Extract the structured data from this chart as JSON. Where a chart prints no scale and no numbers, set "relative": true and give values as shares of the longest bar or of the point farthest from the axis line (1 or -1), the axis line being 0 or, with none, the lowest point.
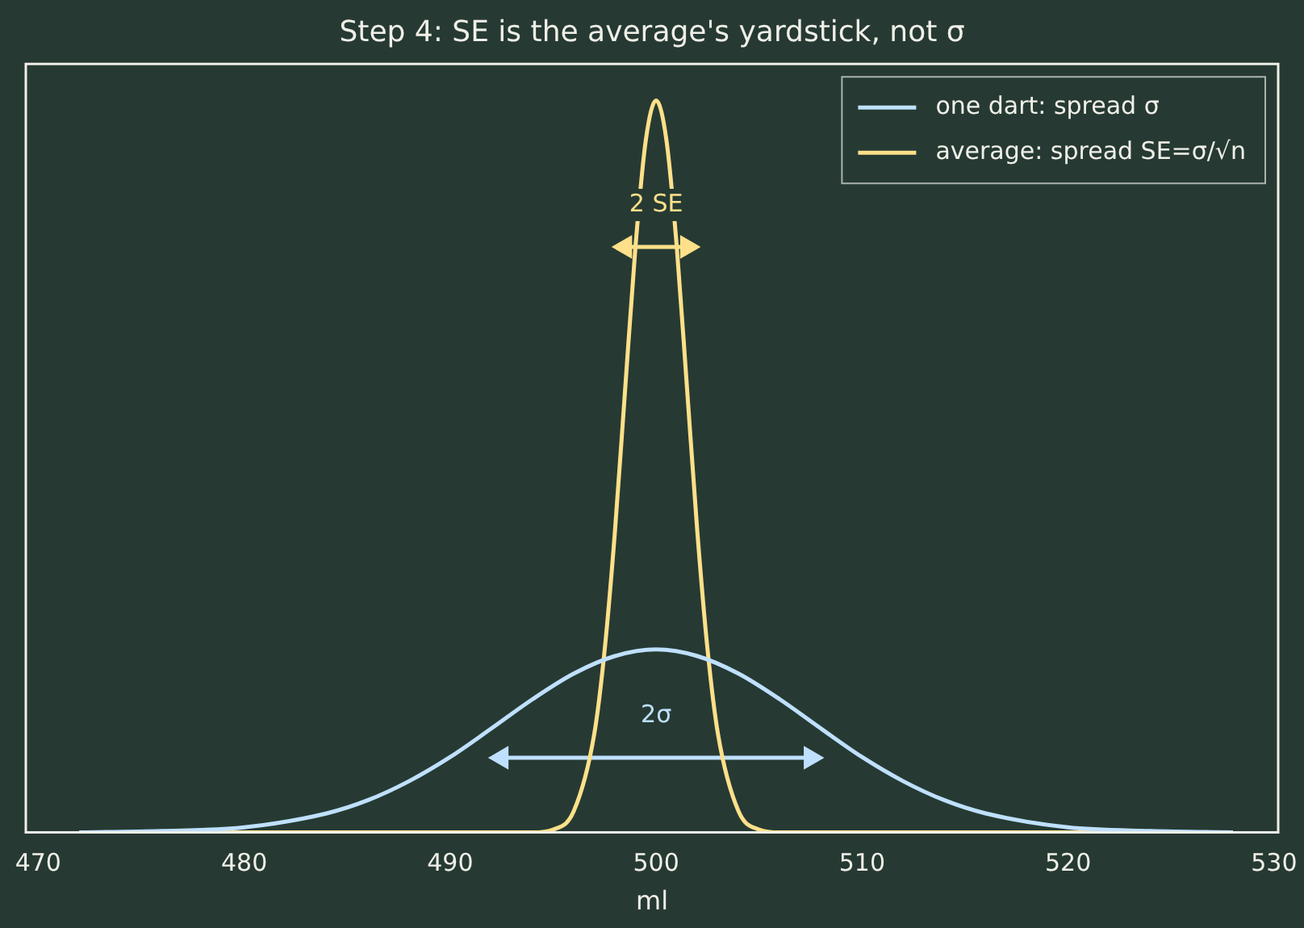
{
  "chart_data": {
    "type": "line",
    "title": "Step 4: SE is the average's yardstick, not σ",
    "xlabel": "ml",
    "relative": true,
    "xlim": [
      469.4,
      530.2
    ],
    "xticks": [
      470,
      480,
      490,
      500,
      510,
      520,
      530
    ],
    "tick_labels": "x",
    "grid": false,
    "legend": "top right",
    "marker": "none",
    "series": [
      {
        "name": "one dart: spread σ",
        "color": "#bfe0ff",
        "x": [
          472,
          476,
          480,
          484,
          486,
          488,
          490,
          492,
          494,
          496,
          498,
          500,
          502,
          504,
          506,
          508,
          510,
          512,
          514,
          516,
          520,
          524,
          528
        ],
        "values": [
          0,
          0.002,
          0.007,
          0.026,
          0.044,
          0.07,
          0.103,
          0.142,
          0.182,
          0.217,
          0.241,
          0.25,
          0.241,
          0.217,
          0.182,
          0.142,
          0.103,
          0.07,
          0.044,
          0.026,
          0.007,
          0.002,
          0
        ]
      },
      {
        "name": "average: spread SE=σ/√n",
        "color": "#ffe08a",
        "x": [
          472,
          490,
          494,
          495,
          496,
          497,
          497.5,
          498,
          498.5,
          499,
          499.5,
          500,
          500.5,
          501,
          501.5,
          502,
          502.5,
          503,
          504,
          505,
          506,
          510,
          528
        ],
        "values": [
          0,
          0,
          0,
          0.004,
          0.029,
          0.135,
          0.249,
          0.411,
          0.607,
          0.801,
          0.946,
          1,
          0.946,
          0.801,
          0.607,
          0.411,
          0.249,
          0.135,
          0.029,
          0.004,
          0,
          0,
          0
        ]
      },
      {
        "color": "#bfe0ff",
        "x": [
          492.5,
          507.5
        ],
        "values": [
          0.102,
          0.102
        ],
        "marker": "triangle"
      },
      {
        "color": "#ffe08a",
        "x": [
          498.5,
          501.5
        ],
        "values": [
          0.8,
          0.8
        ],
        "marker": "triangle"
      }
    ],
    "annotations": [
      "2σ",
      "2 SE"
    ]
  }
}
